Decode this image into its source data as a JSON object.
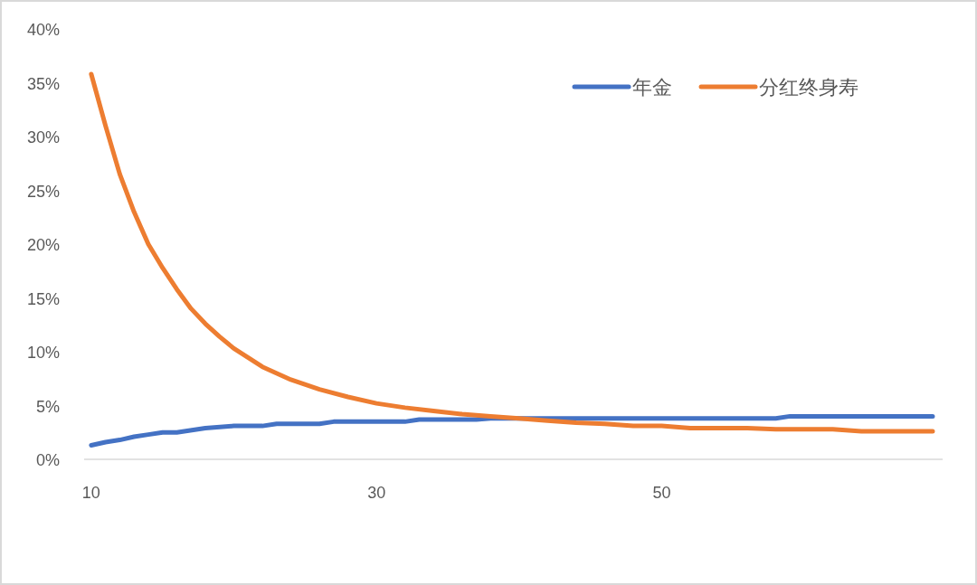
{
  "chart_data": {
    "type": "line",
    "xlim": [
      9.5,
      69.7
    ],
    "xticks": [
      10,
      30,
      50
    ],
    "ylim": [
      0,
      40
    ],
    "yticks": [
      {
        "value": 0,
        "label": "0%"
      },
      {
        "value": 5,
        "label": "5%"
      },
      {
        "value": 10,
        "label": "10%"
      },
      {
        "value": 15,
        "label": "15%"
      },
      {
        "value": 20,
        "label": "20%"
      },
      {
        "value": 25,
        "label": "25%"
      },
      {
        "value": 30,
        "label": "30%"
      },
      {
        "value": 35,
        "label": "35%"
      },
      {
        "value": 40,
        "label": "40%"
      }
    ],
    "grid": false,
    "legend": "top right",
    "line_style": "solid",
    "series": [
      {
        "name": "年金",
        "color": "#4472c4",
        "x": [
          10,
          11,
          12,
          13,
          14,
          15,
          16,
          18,
          20,
          22,
          23,
          26,
          27,
          32,
          33,
          37,
          38,
          58,
          59,
          69
        ],
        "values": [
          1.3,
          1.6,
          1.8,
          2.1,
          2.3,
          2.5,
          2.5,
          2.9,
          3.1,
          3.1,
          3.3,
          3.3,
          3.5,
          3.5,
          3.7,
          3.7,
          3.8,
          3.8,
          4.0,
          4.0
        ]
      },
      {
        "name": "分红终身寿",
        "color": "#ed7d31",
        "x": [
          10,
          11,
          12,
          13,
          14,
          15,
          16,
          17,
          18,
          19,
          20,
          22,
          24,
          26,
          28,
          30,
          32,
          34,
          36,
          38,
          40,
          42,
          44,
          46,
          48,
          50,
          52,
          56,
          58,
          62,
          64,
          69
        ],
        "values": [
          35.8,
          31,
          26.5,
          23,
          20,
          17.8,
          15.8,
          14,
          12.6,
          11.4,
          10.3,
          8.6,
          7.4,
          6.5,
          5.8,
          5.2,
          4.8,
          4.5,
          4.2,
          4.0,
          3.8,
          3.6,
          3.4,
          3.3,
          3.1,
          3.1,
          2.9,
          2.9,
          2.8,
          2.8,
          2.6,
          2.6
        ]
      }
    ]
  }
}
